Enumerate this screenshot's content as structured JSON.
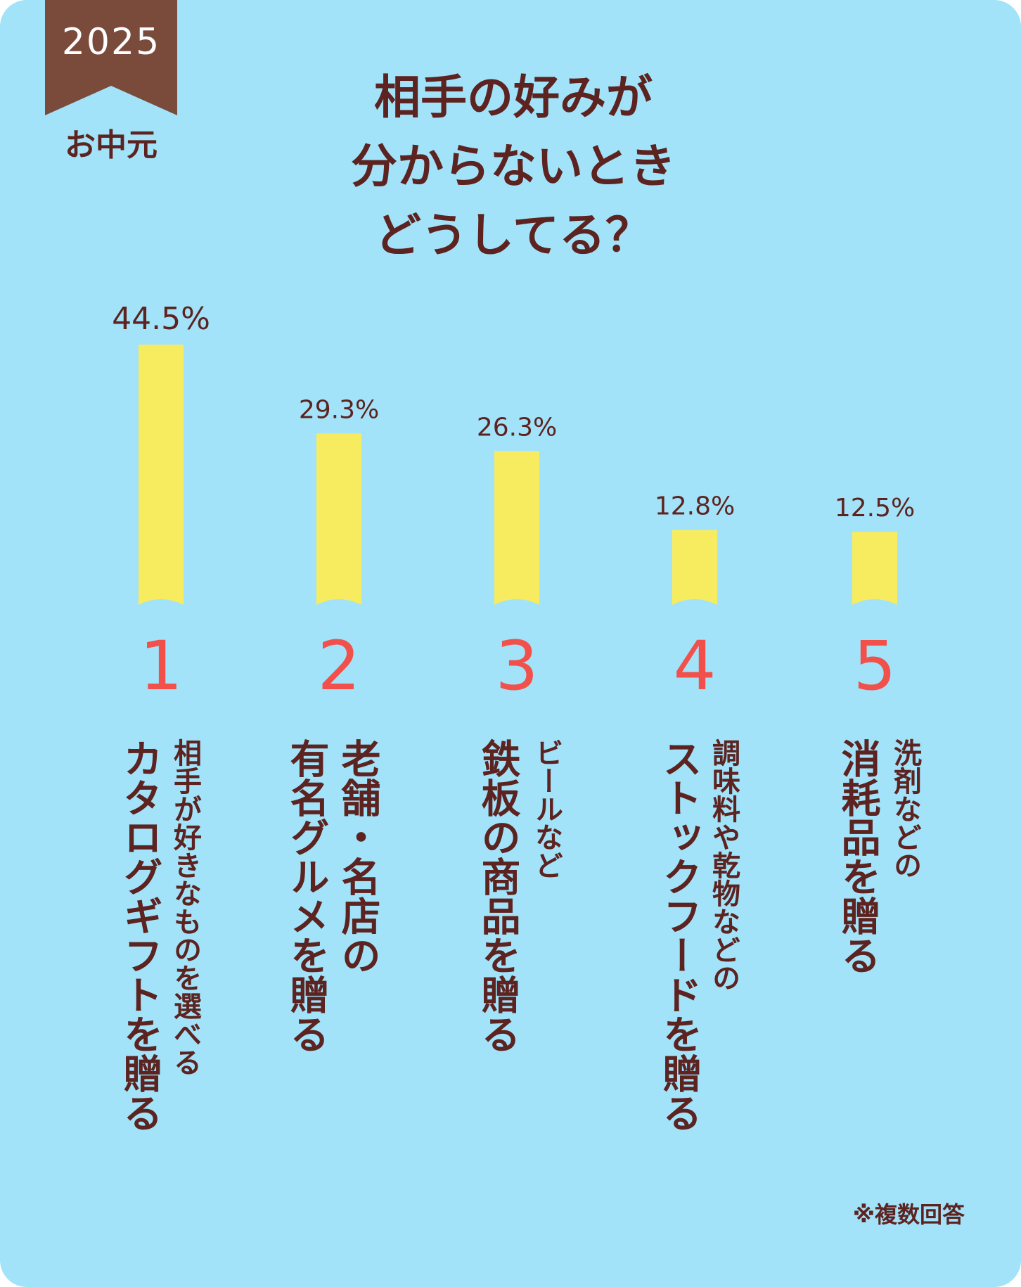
{
  "badge": {
    "year": "2025",
    "season": "お中元"
  },
  "title_lines": [
    "相手の好みが",
    "分からないとき",
    "どうしてる？"
  ],
  "chart_data": {
    "type": "bar",
    "categories": [
      "1",
      "2",
      "3",
      "4",
      "5"
    ],
    "values": [
      44.5,
      29.3,
      26.3,
      12.8,
      12.5
    ],
    "value_labels": [
      "44.5%",
      "29.3%",
      "26.3%",
      "12.8%",
      "12.5%"
    ],
    "ranks": [
      "1",
      "2",
      "3",
      "4",
      "5"
    ],
    "bar_color": "#f7ec5f",
    "rank_color": "#f1504b"
  },
  "answers": [
    {
      "line1": "相手が好きなものを選べる",
      "line2": "カタログギフトを贈る"
    },
    {
      "line1": "老舗・名店の",
      "line2": "有名グルメを贈る"
    },
    {
      "line1": "ビールなど",
      "line2": "鉄板の商品を贈る"
    },
    {
      "line1": "調味料や乾物などの",
      "line2": "ストックフードを贈る"
    },
    {
      "line1": "洗剤などの",
      "line2": "消耗品を贈る"
    }
  ],
  "note": "※複数回答",
  "colors": {
    "background": "#a2e3f9",
    "text": "#5c2320",
    "ribbon": "#7a4a3b"
  }
}
